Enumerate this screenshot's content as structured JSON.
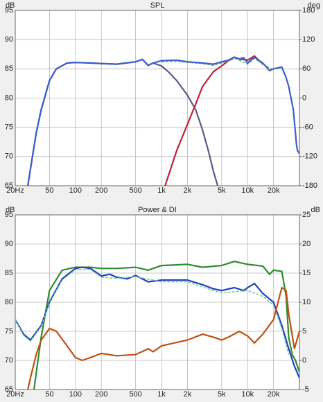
{
  "chart_data": [
    {
      "type": "line",
      "title": "SPL",
      "y_label": "dB",
      "y2_label": "deg",
      "xscale": "log",
      "grid": true,
      "xlim": [
        20,
        40000
      ],
      "xticks": [
        {
          "value": 20,
          "label": "20Hz"
        },
        50,
        100,
        200,
        500,
        {
          "value": 1000,
          "label": "1k"
        },
        {
          "value": 2000,
          "label": "2k"
        },
        {
          "value": 5000,
          "label": "5k"
        },
        {
          "value": 10000,
          "label": "10k"
        },
        {
          "value": 20000,
          "label": "20k"
        }
      ],
      "ylim": [
        65,
        95
      ],
      "yticks": [
        65,
        70,
        75,
        80,
        85,
        90,
        95
      ],
      "y2lim": [
        -180,
        180
      ],
      "y2ticks": [
        -180,
        -120,
        -60,
        0,
        60,
        120,
        180
      ],
      "series": [
        {
          "color": "#5a5a8a",
          "dash": false,
          "x": [
            28,
            35,
            40,
            50,
            60,
            80,
            100,
            150,
            200,
            300,
            500,
            600,
            700,
            800,
            1000,
            1200,
            1500,
            2000,
            2500,
            3000,
            3500,
            4000,
            4500
          ],
          "values": [
            65,
            74,
            78,
            83,
            85,
            86,
            86.1,
            86,
            85.9,
            85.8,
            86.2,
            86.6,
            85.6,
            86,
            85.5,
            84.5,
            83,
            80.5,
            78,
            74.5,
            71,
            67.5,
            65
          ]
        },
        {
          "color": "#c0203a",
          "dash": false,
          "x": [
            1100,
            1500,
            2000,
            2500,
            3000,
            4000,
            5000,
            6000,
            7000,
            8000,
            10000,
            12000,
            15000
          ],
          "values": [
            65,
            71,
            75.5,
            79,
            82,
            84.5,
            85.5,
            86.4,
            87,
            86.7,
            86.5,
            87.2,
            85.8
          ]
        },
        {
          "color": "#60b060",
          "dash": true,
          "x": [
            1000,
            1500,
            2000,
            3000,
            4000,
            5000,
            6000,
            7000,
            8000,
            10000,
            12000,
            15000,
            20000
          ],
          "values": [
            86.2,
            86.3,
            86.1,
            85.9,
            85.6,
            86,
            86.3,
            86.8,
            86.5,
            85.8,
            86.8,
            85.8,
            84.8
          ]
        },
        {
          "color": "#3a5fcd",
          "dash": false,
          "x": [
            28,
            35,
            40,
            50,
            60,
            80,
            100,
            150,
            200,
            300,
            500,
            600,
            700,
            800,
            1000,
            1500,
            2000,
            3000,
            4000,
            5000,
            6000,
            7000,
            8000,
            9000,
            10000,
            12000,
            15000,
            18000,
            20000,
            25000,
            28000,
            30000,
            34000,
            37000,
            38000,
            40000
          ],
          "values": [
            65,
            74,
            78,
            83,
            85,
            86,
            86.1,
            86,
            85.9,
            85.8,
            86.2,
            86.6,
            85.6,
            86,
            86.4,
            86.5,
            86.2,
            86,
            85.8,
            86.2,
            86.5,
            87,
            86.7,
            86.9,
            86,
            87,
            86,
            84.7,
            85,
            85.3,
            83.5,
            82,
            78,
            72,
            71,
            70.5
          ]
        }
      ]
    },
    {
      "type": "line",
      "title": "Power & DI",
      "y_label": "dB",
      "y2_label": "dB",
      "xscale": "log",
      "grid": true,
      "xlim": [
        20,
        40000
      ],
      "xticks": [
        {
          "value": 20,
          "label": "20Hz"
        },
        50,
        100,
        200,
        500,
        {
          "value": 1000,
          "label": "1k"
        },
        {
          "value": 2000,
          "label": "2k"
        },
        {
          "value": 5000,
          "label": "5k"
        },
        {
          "value": 10000,
          "label": "10k"
        },
        {
          "value": 20000,
          "label": "20k"
        }
      ],
      "ylim": [
        65,
        95
      ],
      "yticks": [
        65,
        70,
        75,
        80,
        85,
        90,
        95
      ],
      "y2lim": [
        -5,
        25
      ],
      "y2ticks": [
        -5,
        0,
        5,
        10,
        15,
        20,
        25
      ],
      "series": [
        {
          "color": "#2e8b2e",
          "dash": false,
          "x": [
            33,
            40,
            50,
            70,
            100,
            150,
            200,
            300,
            500,
            700,
            1000,
            2000,
            3000,
            5000,
            7000,
            10000,
            15000,
            18000,
            20000,
            25000,
            28000,
            30000,
            33000,
            36000,
            40000
          ],
          "values": [
            65,
            74,
            82,
            85.5,
            86,
            86,
            85.8,
            85.8,
            86,
            85.5,
            86.3,
            86.5,
            86,
            86.3,
            87,
            86.5,
            86.2,
            84.8,
            85.5,
            85.3,
            81,
            74,
            71,
            70,
            68
          ]
        },
        {
          "color": "#2040c0",
          "dash": false,
          "x": [
            20,
            25,
            30,
            40,
            50,
            70,
            100,
            120,
            150,
            200,
            250,
            300,
            400,
            500,
            700,
            1000,
            2000,
            3000,
            4000,
            5000,
            7000,
            9000,
            10000,
            12000,
            15000,
            20000,
            25000,
            30000,
            35000,
            40000
          ],
          "values": [
            77,
            74.5,
            73.5,
            76,
            80,
            84,
            85.8,
            86,
            85.8,
            84.5,
            84.8,
            84.3,
            84,
            84.6,
            83.5,
            83.8,
            83.8,
            83,
            82.3,
            82,
            82.5,
            82,
            82.5,
            83.2,
            81.5,
            80,
            76,
            72,
            69,
            67
          ]
        },
        {
          "color": "#70c8a0",
          "dash": true,
          "x": [
            20,
            25,
            30,
            40,
            50,
            70,
            100,
            150,
            200,
            300,
            500,
            1000,
            2000,
            4000,
            5000,
            10000,
            15000,
            20000,
            25000,
            30000
          ],
          "values": [
            77,
            74.3,
            73.3,
            75.8,
            79.8,
            83.8,
            85.6,
            85.6,
            84.3,
            84.1,
            84.4,
            83.5,
            83.5,
            82,
            81.6,
            82,
            81,
            79.5,
            75.5,
            71
          ]
        },
        {
          "color": "#c05010",
          "dash": false,
          "axis": "y2",
          "x": [
            28,
            30,
            35,
            40,
            50,
            60,
            80,
            100,
            120,
            150,
            200,
            300,
            500,
            700,
            800,
            1000,
            2000,
            3000,
            4000,
            5000,
            6000,
            8000,
            10000,
            12000,
            15000,
            20000,
            25000,
            28000,
            30000,
            35000,
            40000
          ],
          "values": [
            -5,
            -3,
            1,
            3.5,
            5.5,
            5,
            2.5,
            0.5,
            0,
            0.5,
            1.2,
            0.8,
            1,
            2,
            1.5,
            2.5,
            3.5,
            4.5,
            4,
            3.5,
            4,
            5,
            4.2,
            3,
            4.5,
            7,
            12.5,
            12,
            8,
            2,
            5
          ]
        }
      ]
    }
  ]
}
